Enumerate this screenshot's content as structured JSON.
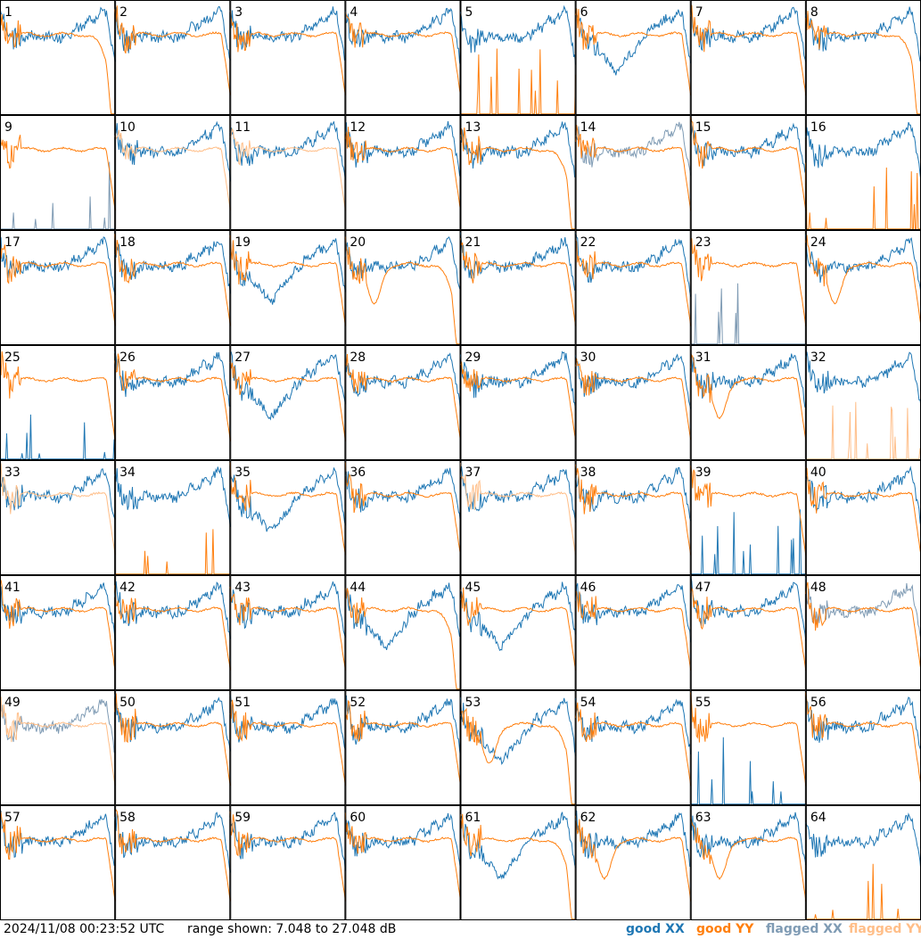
{
  "chart_data": {
    "type": "line",
    "title": "",
    "panel_count": 64,
    "grid": {
      "rows": 8,
      "cols": 8
    },
    "panel_labels": [
      "1",
      "2",
      "3",
      "4",
      "5",
      "6",
      "7",
      "8",
      "9",
      "10",
      "11",
      "12",
      "13",
      "14",
      "15",
      "16",
      "17",
      "18",
      "19",
      "20",
      "21",
      "22",
      "23",
      "24",
      "25",
      "26",
      "27",
      "28",
      "29",
      "30",
      "31",
      "32",
      "33",
      "34",
      "35",
      "36",
      "37",
      "38",
      "39",
      "40",
      "41",
      "42",
      "43",
      "44",
      "45",
      "46",
      "47",
      "48",
      "49",
      "50",
      "51",
      "52",
      "53",
      "54",
      "55",
      "56",
      "57",
      "58",
      "59",
      "60",
      "61",
      "62",
      "63",
      "64"
    ],
    "y_range_db": [
      7.048,
      27.048
    ],
    "series": [
      {
        "name": "good XX",
        "color": "#1f77b4"
      },
      {
        "name": "good YY",
        "color": "#ff7f0e"
      },
      {
        "name": "flagged XX",
        "color": "#7f9bb4"
      },
      {
        "name": "flagged YY",
        "color": "#ffbe88"
      }
    ],
    "flags": {
      "flagged_xx": [
        9,
        14,
        23,
        48,
        49
      ],
      "flagged_yy": [
        10,
        11,
        32,
        33,
        37,
        49
      ]
    },
    "missing": {
      "xx": [
        9,
        25,
        39
      ],
      "yy": [
        5,
        16,
        32,
        34,
        64
      ]
    },
    "variants": {
      "xx_dips": [
        6,
        19,
        27,
        35,
        44,
        45,
        53,
        61
      ],
      "yy_dips": [
        20,
        24,
        31,
        53,
        62,
        63
      ],
      "yy_droop_right": [
        1,
        8,
        13,
        20,
        44,
        53,
        61
      ],
      "xx_sparse_low": [
        23,
        55
      ],
      "noise_spikes_yy": [
        34
      ],
      "noise_spikes_xx": [
        9,
        16,
        23,
        32,
        39,
        55,
        64,
        5
      ]
    }
  },
  "footer": {
    "timestamp": "2024/11/08 00:23:52 UTC",
    "range": "range shown: 7.048 to 27.048 dB"
  },
  "legend": {
    "good_xx": "good XX",
    "good_yy": "good YY",
    "flagged_xx": "flagged XX",
    "flagged_yy": "flagged YY"
  },
  "colors": {
    "good_xx": "#1f77b4",
    "good_yy": "#ff7f0e",
    "flagged_xx": "#7f9bb4",
    "flagged_yy": "#ffbe88"
  }
}
